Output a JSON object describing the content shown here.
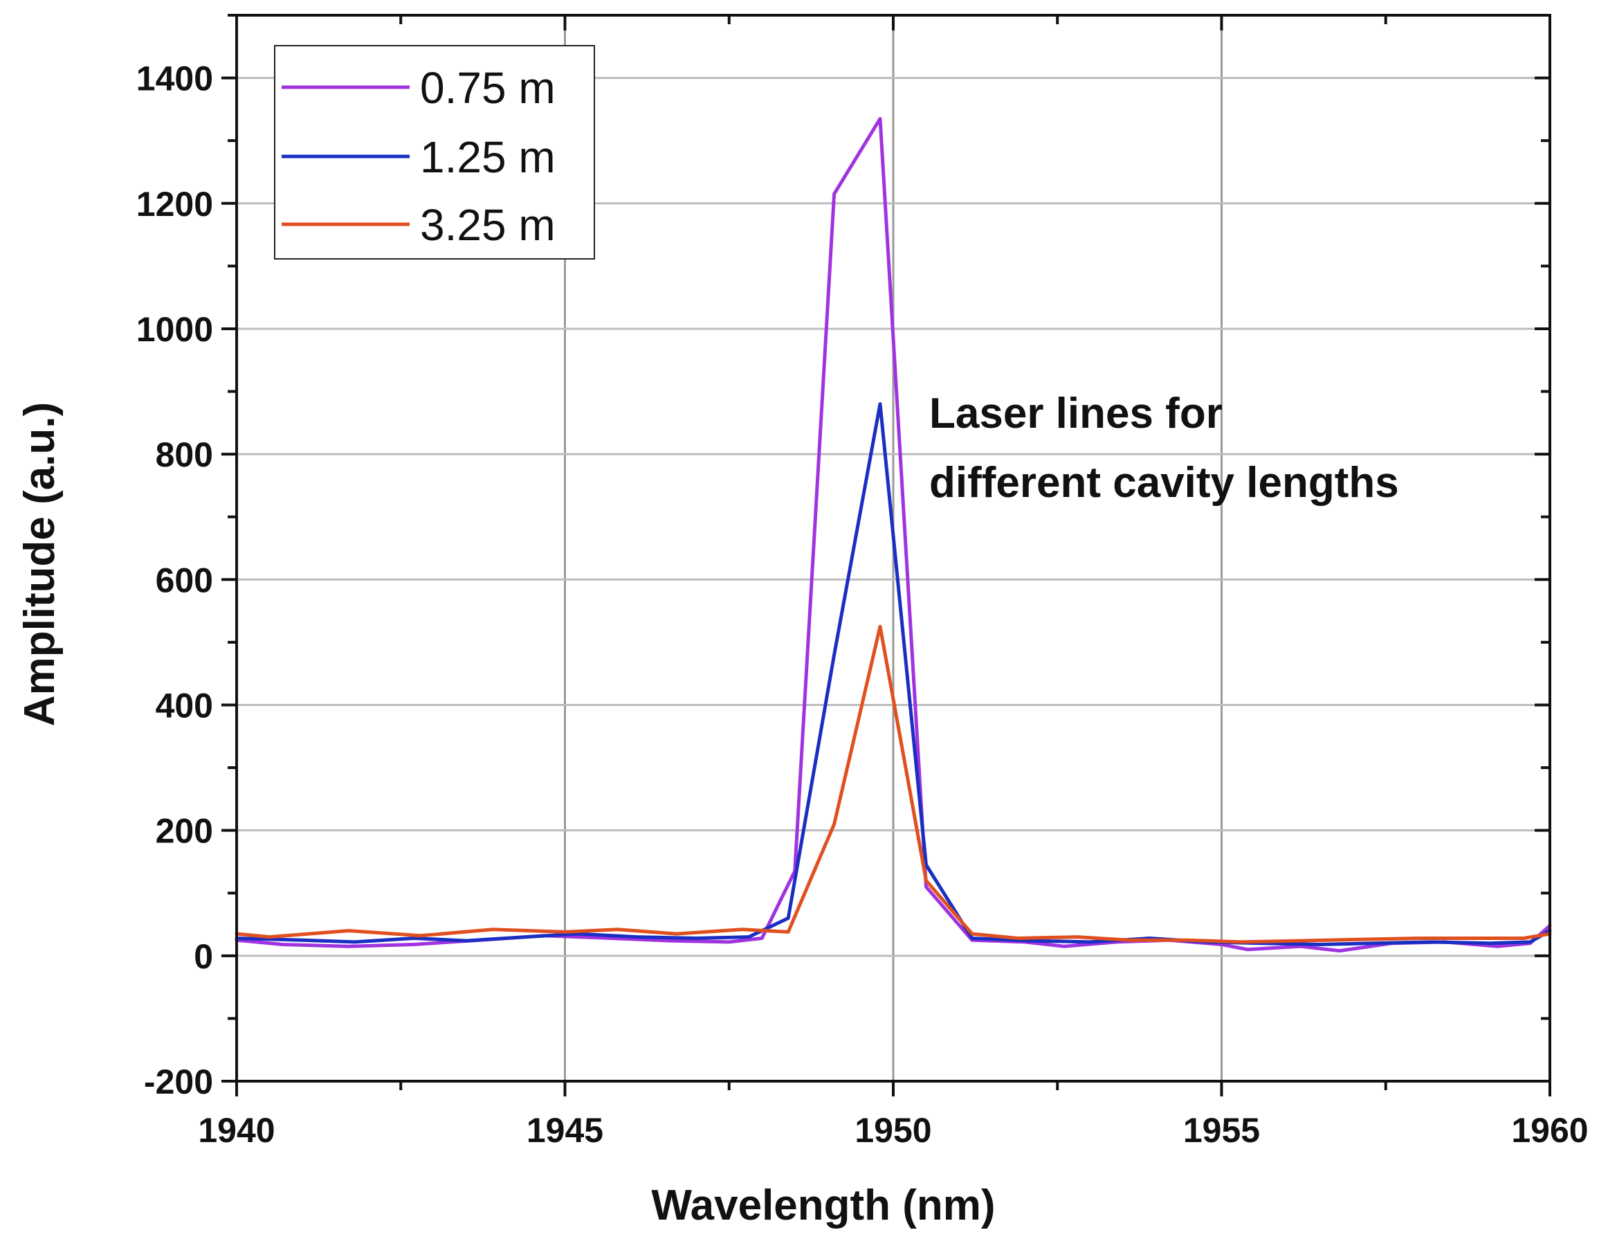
{
  "chart_data": {
    "type": "line",
    "title": "",
    "xlabel": "Wavelength (nm)",
    "ylabel": "Amplitude (a.u.)",
    "xlim": [
      1940,
      1960
    ],
    "ylim": [
      -200,
      1500
    ],
    "x_ticks": [
      "1940",
      "1945",
      "1950",
      "1955",
      "1960"
    ],
    "y_ticks": [
      "-200",
      "0",
      "200",
      "400",
      "600",
      "800",
      "1000",
      "1200",
      "1400"
    ],
    "grid": true,
    "legend_position": "top-left",
    "annotation": [
      "Laser lines for",
      "different cavity lengths"
    ],
    "series": [
      {
        "name": "0.75 m",
        "color": "#a033e0",
        "points": [
          [
            1940.0,
            25
          ],
          [
            1940.7,
            18
          ],
          [
            1941.7,
            15
          ],
          [
            1942.7,
            18
          ],
          [
            1943.7,
            25
          ],
          [
            1944.7,
            32
          ],
          [
            1945.7,
            28
          ],
          [
            1946.6,
            24
          ],
          [
            1947.5,
            22
          ],
          [
            1948.0,
            28
          ],
          [
            1948.5,
            135
          ],
          [
            1949.1,
            1215
          ],
          [
            1949.8,
            1335
          ],
          [
            1950.5,
            110
          ],
          [
            1951.2,
            25
          ],
          [
            1952.0,
            22
          ],
          [
            1952.6,
            15
          ],
          [
            1953.4,
            22
          ],
          [
            1954.2,
            25
          ],
          [
            1955.0,
            18
          ],
          [
            1955.4,
            10
          ],
          [
            1956.2,
            15
          ],
          [
            1956.8,
            8
          ],
          [
            1957.6,
            20
          ],
          [
            1958.4,
            22
          ],
          [
            1959.2,
            15
          ],
          [
            1959.7,
            20
          ],
          [
            1960.0,
            48
          ]
        ]
      },
      {
        "name": "1.25 m",
        "color": "#1a2fc2",
        "points": [
          [
            1940.0,
            28
          ],
          [
            1941.0,
            25
          ],
          [
            1941.8,
            22
          ],
          [
            1942.7,
            28
          ],
          [
            1943.5,
            24
          ],
          [
            1944.4,
            30
          ],
          [
            1945.2,
            35
          ],
          [
            1946.1,
            30
          ],
          [
            1947.0,
            28
          ],
          [
            1947.8,
            30
          ],
          [
            1948.4,
            60
          ],
          [
            1949.1,
            480
          ],
          [
            1949.8,
            880
          ],
          [
            1950.5,
            145
          ],
          [
            1951.2,
            28
          ],
          [
            1952.1,
            24
          ],
          [
            1953.0,
            22
          ],
          [
            1953.9,
            28
          ],
          [
            1954.8,
            22
          ],
          [
            1955.6,
            20
          ],
          [
            1956.5,
            18
          ],
          [
            1957.3,
            20
          ],
          [
            1958.2,
            22
          ],
          [
            1959.1,
            20
          ],
          [
            1959.7,
            22
          ],
          [
            1960.0,
            40
          ]
        ]
      },
      {
        "name": "3.25 m",
        "color": "#e0501f",
        "points": [
          [
            1940.0,
            35
          ],
          [
            1940.5,
            30
          ],
          [
            1941.7,
            40
          ],
          [
            1942.8,
            32
          ],
          [
            1943.9,
            42
          ],
          [
            1945.0,
            38
          ],
          [
            1945.8,
            42
          ],
          [
            1946.7,
            35
          ],
          [
            1947.7,
            42
          ],
          [
            1948.4,
            38
          ],
          [
            1949.1,
            210
          ],
          [
            1949.8,
            525
          ],
          [
            1950.5,
            120
          ],
          [
            1951.2,
            35
          ],
          [
            1951.9,
            28
          ],
          [
            1952.8,
            30
          ],
          [
            1953.6,
            25
          ],
          [
            1954.5,
            25
          ],
          [
            1955.3,
            22
          ],
          [
            1956.2,
            24
          ],
          [
            1957.1,
            26
          ],
          [
            1958.0,
            28
          ],
          [
            1958.9,
            28
          ],
          [
            1959.6,
            28
          ],
          [
            1960.0,
            35
          ]
        ]
      }
    ]
  }
}
